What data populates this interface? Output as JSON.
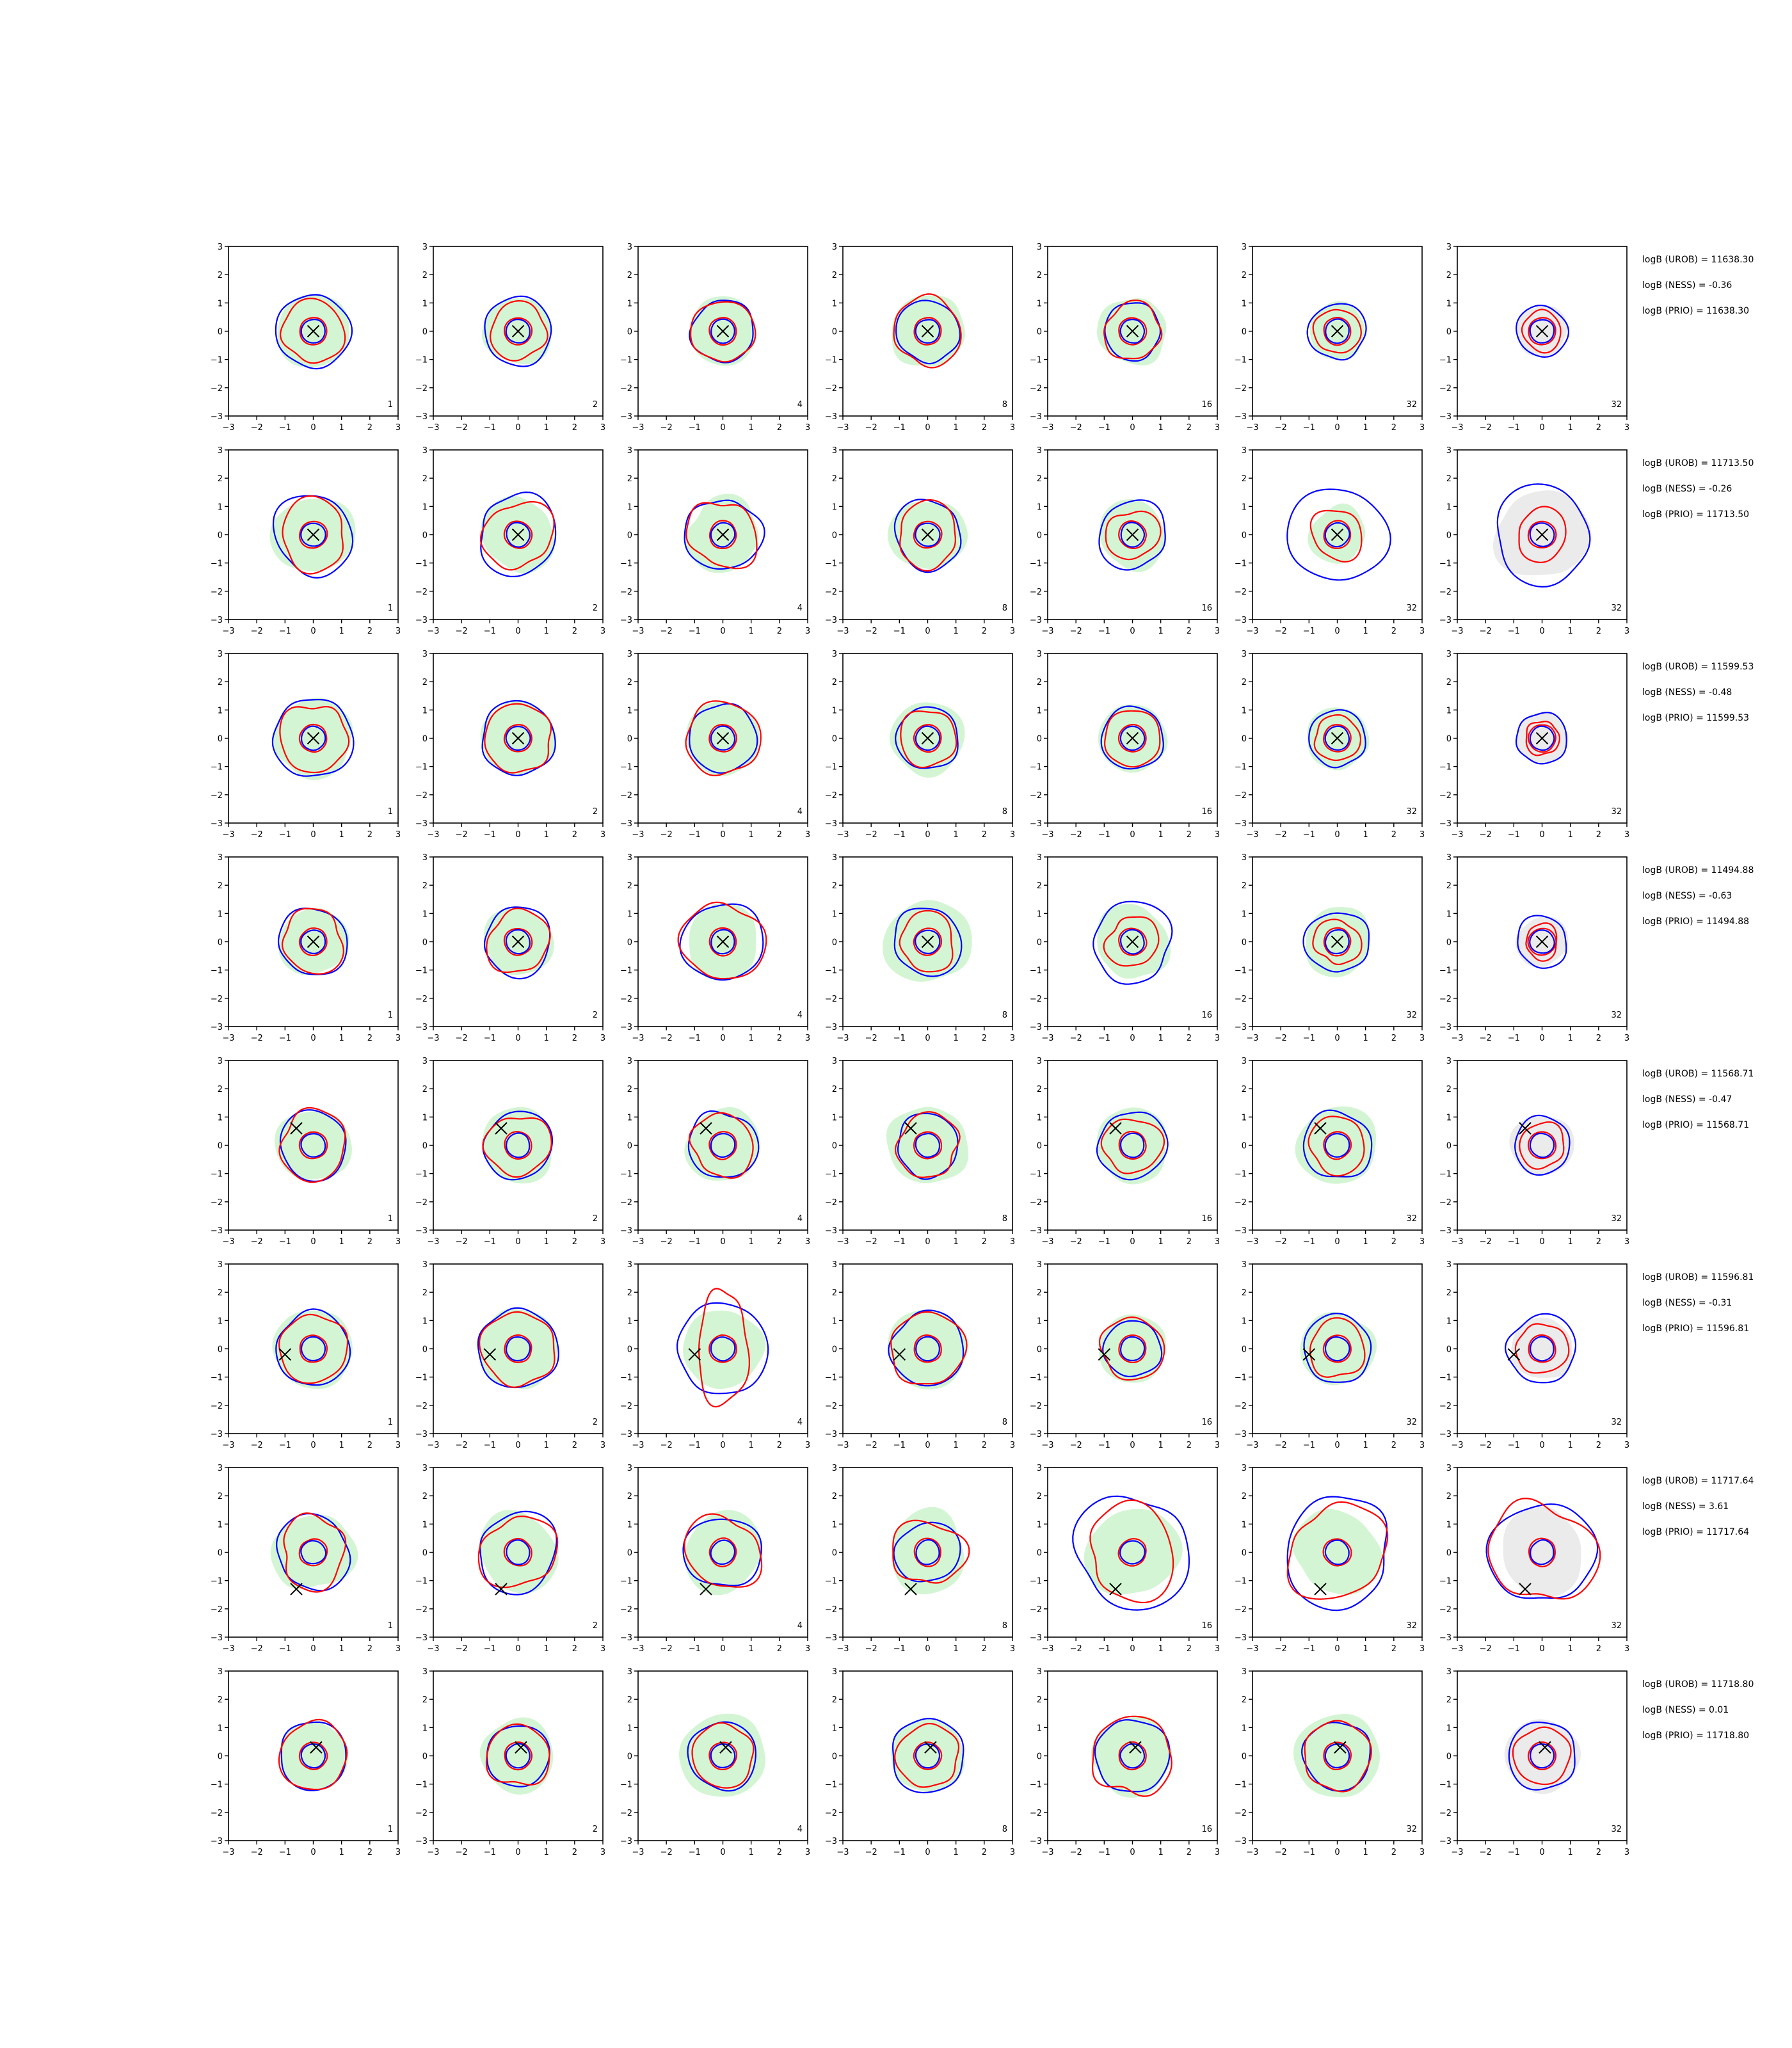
{
  "chart_data": {
    "type": "contour-grid",
    "description_of_panels": "8 rows x 7 columns of 2D density contour plots",
    "xlim": [
      -3,
      3
    ],
    "ylim": [
      -3,
      3
    ],
    "xticks": [
      "−3",
      "−2",
      "−1",
      "0",
      "1",
      "2",
      "3"
    ],
    "yticks": [
      "−3",
      "−2",
      "−1",
      "0",
      "1",
      "2",
      "3"
    ],
    "grid": false,
    "column_labels": [
      "1",
      "2",
      "4",
      "8",
      "16",
      "32",
      "32"
    ],
    "colors": {
      "blue": "#0000ff",
      "red": "#ff0000",
      "green_fill": "#d4f5d4",
      "gray_fill": "#ebebeb",
      "marker": "#000000"
    },
    "rows": [
      {
        "marker": [
          0.0,
          0.0
        ],
        "texts": [
          "logB (UROB) = 11638.30",
          "logB (NESS) = -0.36",
          "logB (PRIO) = 11638.30"
        ],
        "blue_r": [
          1.3,
          1.2,
          1.1,
          1.1,
          1.0,
          1.0,
          0.9
        ],
        "red_r": [
          1.1,
          1.0,
          1.1,
          1.2,
          1.0,
          0.8,
          0.7
        ],
        "green_r": [
          1.3,
          1.2,
          1.2,
          1.3,
          1.2,
          1.0,
          0.0
        ],
        "gray_r": [
          0.0,
          0.0,
          0.0,
          0.0,
          0.0,
          0.0,
          0.9
        ]
      },
      {
        "marker": [
          0.0,
          0.0
        ],
        "texts": [
          "logB (UROB) = 11713.50",
          "logB (NESS) = -0.26",
          "logB (PRIO) = 11713.50"
        ],
        "blue_r": [
          1.4,
          1.4,
          1.3,
          1.2,
          1.2,
          1.7,
          1.7
        ],
        "red_r": [
          1.2,
          1.2,
          1.2,
          1.1,
          0.9,
          0.9,
          0.9
        ],
        "green_r": [
          1.4,
          1.3,
          1.3,
          1.3,
          1.2,
          1.0,
          0.0
        ],
        "gray_r": [
          0.0,
          0.0,
          0.0,
          0.0,
          0.0,
          0.0,
          1.6
        ]
      },
      {
        "marker": [
          0.0,
          0.0
        ],
        "texts": [
          "logB (UROB) = 11599.53",
          "logB (NESS) = -0.48",
          "logB (PRIO) = 11599.53"
        ],
        "blue_r": [
          1.4,
          1.3,
          1.2,
          1.1,
          1.1,
          1.0,
          0.9
        ],
        "red_r": [
          1.2,
          1.2,
          1.3,
          1.0,
          1.0,
          0.8,
          0.6
        ],
        "green_r": [
          1.4,
          1.3,
          1.3,
          1.3,
          1.2,
          1.1,
          0.0
        ],
        "gray_r": [
          0.0,
          0.0,
          0.0,
          0.0,
          0.0,
          0.0,
          0.9
        ]
      },
      {
        "marker": [
          0.0,
          0.0
        ],
        "texts": [
          "logB (UROB) = 11494.88",
          "logB (NESS) = -0.63",
          "logB (PRIO) = 11494.88"
        ],
        "blue_r": [
          1.2,
          1.2,
          1.4,
          1.2,
          1.4,
          1.1,
          0.9
        ],
        "red_r": [
          1.1,
          1.1,
          1.4,
          1.0,
          0.9,
          0.8,
          0.6
        ],
        "green_r": [
          1.2,
          1.2,
          1.3,
          1.5,
          1.3,
          1.2,
          0.0
        ],
        "gray_r": [
          0.0,
          0.0,
          0.0,
          0.0,
          0.0,
          0.0,
          0.9
        ]
      },
      {
        "marker": [
          -0.6,
          0.6
        ],
        "texts": [
          "logB (UROB) = 11568.71",
          "logB (NESS) = -0.47",
          "logB (PRIO) = 11568.71"
        ],
        "blue_r": [
          1.2,
          1.2,
          1.2,
          1.1,
          1.2,
          1.2,
          1.0
        ],
        "red_r": [
          1.2,
          1.1,
          1.1,
          1.1,
          1.0,
          1.0,
          0.8
        ],
        "green_r": [
          1.3,
          1.3,
          1.3,
          1.4,
          1.3,
          1.4,
          0.0
        ],
        "gray_r": [
          0.0,
          0.0,
          0.0,
          0.0,
          0.0,
          0.0,
          1.1
        ]
      },
      {
        "marker": [
          -1.0,
          -0.2
        ],
        "texts": [
          "logB (UROB) = 11596.81",
          "logB (NESS) = -0.31",
          "logB (PRIO) = 11596.81"
        ],
        "blue_r": [
          1.3,
          1.4,
          1.6,
          1.3,
          1.0,
          1.2,
          1.2
        ],
        "red_r": [
          1.2,
          1.3,
          2.0,
          1.3,
          1.1,
          1.0,
          0.9
        ],
        "green_r": [
          1.4,
          1.4,
          1.4,
          1.4,
          1.2,
          1.3,
          0.0
        ],
        "gray_r": [
          0.0,
          0.0,
          0.0,
          0.0,
          0.0,
          0.0,
          1.1
        ]
      },
      {
        "marker": [
          -0.6,
          -1.3
        ],
        "texts": [
          "logB (UROB) = 11717.64",
          "logB (NESS) = 3.61",
          "logB (PRIO) = 11717.64"
        ],
        "blue_r": [
          1.3,
          1.4,
          1.3,
          1.1,
          2.0,
          1.9,
          1.8
        ],
        "red_r": [
          1.2,
          1.3,
          1.3,
          1.2,
          1.6,
          1.7,
          1.8
        ],
        "green_r": [
          1.4,
          1.4,
          1.4,
          1.4,
          1.6,
          1.5,
          0.0
        ],
        "gray_r": [
          0.0,
          0.0,
          0.0,
          0.0,
          0.0,
          0.0,
          1.5
        ]
      },
      {
        "marker": [
          0.1,
          0.3
        ],
        "texts": [
          "logB (UROB) = 11718.80",
          "logB (NESS) = 0.01",
          "logB (PRIO) = 11718.80"
        ],
        "blue_r": [
          1.2,
          1.1,
          1.2,
          1.3,
          1.3,
          1.2,
          1.2
        ],
        "red_r": [
          1.2,
          1.1,
          1.1,
          1.1,
          1.4,
          1.2,
          1.0
        ],
        "green_r": [
          1.2,
          1.3,
          1.5,
          1.3,
          1.4,
          1.5,
          0.0
        ],
        "gray_r": [
          0.0,
          0.0,
          0.0,
          0.0,
          0.0,
          0.0,
          1.3
        ]
      }
    ]
  }
}
